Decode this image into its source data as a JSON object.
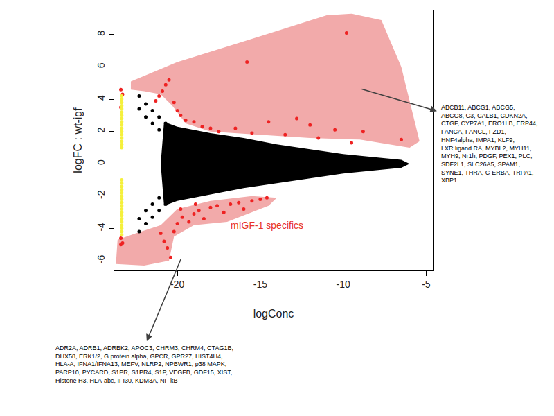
{
  "chart_data": {
    "type": "scatter",
    "x_label": "logConc",
    "y_label": "logFC : wt-igf",
    "xlim": [
      -23.8,
      -4.6
    ],
    "ylim": [
      -6.6,
      9.5
    ],
    "xticks": [
      -20,
      -15,
      -10,
      -5
    ],
    "yticks": [
      -6,
      -4,
      -2,
      0,
      2,
      4,
      6,
      8
    ],
    "grid": false,
    "series": [
      {
        "type": "area",
        "color": "#f2aaaa",
        "x": [
          -22.8,
          -20,
          -15,
          -11,
          -9.5,
          -7.7,
          -6.5,
          -5.4,
          -6,
          -9,
          -12,
          -15,
          -18,
          -19.5,
          -20.3,
          -21,
          -22,
          -22.8
        ],
        "values": [
          5.1,
          6.3,
          7.9,
          9.2,
          9.3,
          8.9,
          6,
          1.4,
          1.0,
          1.5,
          1.6,
          1.8,
          2.0,
          2.5,
          3.6,
          4.3,
          4.5,
          4.6
        ]
      },
      {
        "type": "area",
        "color": "#f2aaaa",
        "x": [
          -23.6,
          -23.7,
          -22,
          -20.5,
          -20.2,
          -19,
          -17,
          -14.5,
          -14,
          -15.5,
          -18,
          -20,
          -21,
          -22.5
        ],
        "values": [
          -4.7,
          -6.2,
          -6.3,
          -6.0,
          -4.5,
          -3.8,
          -3.6,
          -2.6,
          -2.1,
          -2.0,
          -2.3,
          -2.8,
          -3.8,
          -4.3
        ]
      },
      {
        "type": "area",
        "color": "#000000",
        "x": [
          -21,
          -20.8,
          -20,
          -18,
          -16,
          -14,
          -12,
          -10,
          -8,
          -6.5,
          -6,
          -6.5,
          -8,
          -10,
          -12,
          -14,
          -16,
          -18,
          -20,
          -20.8
        ],
        "values": [
          0,
          2.6,
          2.3,
          1.9,
          1.6,
          1.2,
          0.9,
          0.6,
          0.4,
          0.25,
          0,
          -0.25,
          -0.4,
          -0.6,
          -0.9,
          -1.2,
          -1.5,
          -1.9,
          -2.3,
          -2.6
        ]
      },
      {
        "type": "scatter",
        "color": "#000000",
        "marker": "circle",
        "x": [
          -22.3,
          -21.9,
          -21.5,
          -21.1,
          -20.7,
          -22.3,
          -21.9,
          -21.5,
          -21.1,
          -22.3,
          -21.9,
          -21.5,
          -21.1,
          -20.7,
          -22.3,
          -21.9,
          -21.5,
          -21.1
        ],
        "values": [
          4.2,
          3.7,
          3.3,
          2.9,
          2.5,
          3.4,
          2.9,
          2.5,
          2.1,
          -4.2,
          -3.7,
          -3.3,
          -2.9,
          -2.5,
          -3.4,
          -2.9,
          -2.5,
          -2.1
        ]
      },
      {
        "type": "scatter",
        "color": "#ee2222",
        "marker": "circle",
        "x": [
          -15.8,
          -9.8,
          -20.5,
          -20.7,
          -20.9,
          -21.1,
          -21.3,
          -20.2,
          -20.0,
          -19.8,
          -19.5,
          -19,
          -18.5,
          -18,
          -17.5,
          -16.5,
          -15.5,
          -14.5,
          -13.5,
          -12.8,
          -12,
          -11.5,
          -10.5,
          -9.5,
          -8.8,
          -6.5,
          -23.4,
          -23.3,
          -23.4,
          -23.4,
          -23.3,
          -23.4,
          -20.4,
          -20.6,
          -20.8,
          -21,
          -20.2,
          -20,
          -19.7,
          -19.3,
          -19,
          -18.7,
          -18.4,
          -18,
          -17.6,
          -17.2,
          -16.8,
          -16.3,
          -16,
          -15.5,
          -15,
          -14.6,
          -19.8,
          -18.9
        ],
        "values": [
          6.3,
          8.1,
          5.2,
          4.9,
          4.5,
          4.2,
          3.9,
          3.8,
          3.3,
          3.0,
          2.7,
          2.6,
          2.3,
          2.2,
          2.0,
          2.2,
          1.9,
          2.6,
          1.8,
          2.8,
          2.4,
          1.6,
          2.1,
          1.3,
          2.0,
          1.5,
          4.6,
          4.3,
          3.5,
          -4.6,
          -4.9,
          -5.0,
          -5.8,
          -5.2,
          -4.8,
          -4.3,
          -4.2,
          -3.7,
          -3.3,
          -3.6,
          -3.1,
          -2.9,
          -3.4,
          -2.7,
          -2.6,
          -3.0,
          -2.5,
          -2.4,
          -2.8,
          -2.3,
          -2.2,
          -2.1,
          -2.8,
          -2.5
        ]
      },
      {
        "type": "scatter",
        "color": "#f5f03c",
        "marker": "circle",
        "x": [
          -23.35,
          -23.35,
          -23.35,
          -23.35,
          -23.35,
          -23.35,
          -23.35,
          -23.35,
          -23.35,
          -23.35,
          -23.35,
          -23.35,
          -23.35,
          -23.35,
          -23.35,
          -23.35,
          -23.35,
          -23.35,
          -23.35,
          -23.35,
          -23.35,
          -23.35,
          -23.35,
          -23.35,
          -23.35,
          -23.35,
          -23.35,
          -23.35,
          -23.35,
          -23.35,
          -23.35,
          -23.35,
          -23.35,
          -23.35,
          -23.35
        ],
        "values": [
          4.2,
          4.0,
          3.8,
          3.6,
          3.4,
          3.2,
          3.0,
          2.8,
          2.6,
          2.4,
          2.2,
          2.0,
          1.8,
          1.6,
          1.4,
          1.2,
          1.0,
          -1.0,
          -1.2,
          -1.4,
          -1.6,
          -1.8,
          -2.0,
          -2.2,
          -2.4,
          -2.6,
          -2.8,
          -3.0,
          -3.2,
          -3.4,
          -3.6,
          -3.8,
          -4.0,
          -4.2,
          -4.4
        ]
      }
    ],
    "annotations": [
      {
        "text": "mIGF-1 specifics",
        "color": "#e8332a"
      },
      {
        "lines": [
          "ABCB11, ABCG1, ABCG5,",
          "ABCG8, C3, CALB1, CDKN2A,",
          "CTGF, CYP7A1, ERO1LB, ERP44,",
          "FANCA, FANCL, FZD1,",
          "HNF4alpha, IMPA1, KLF9,",
          "LXR ligand RA, MYBL2, MYH11,",
          "MYH9, Nr1h, PDGF, PEX1, PLC,",
          "SDF2L1, SLC26A5, SPAM1,",
          "SYNE1, THRA, C-ERBA, TRPA1,",
          "XBP1"
        ],
        "color": "#000000"
      },
      {
        "lines": [
          "ADR2A, ADRB1, ADRBK2, APOC3, CHRM3, CHRM4, CTAG1B,",
          "DHX58, ERK1/2, G protein alpha, GPCR, GPR27, HIST4H4,",
          "HLA-A, IFNA1/IFNA13, MEFV, NLRP2, NPBWR1, p38 MAPK,",
          "PARP10, PYCARD, S1PR, S1PR4, S1P, VEGFB, GDF15, XIST,",
          "Histone H3, HLA-abc, IFI30, KDM3A, NF-kB"
        ],
        "color": "#000000"
      }
    ]
  }
}
